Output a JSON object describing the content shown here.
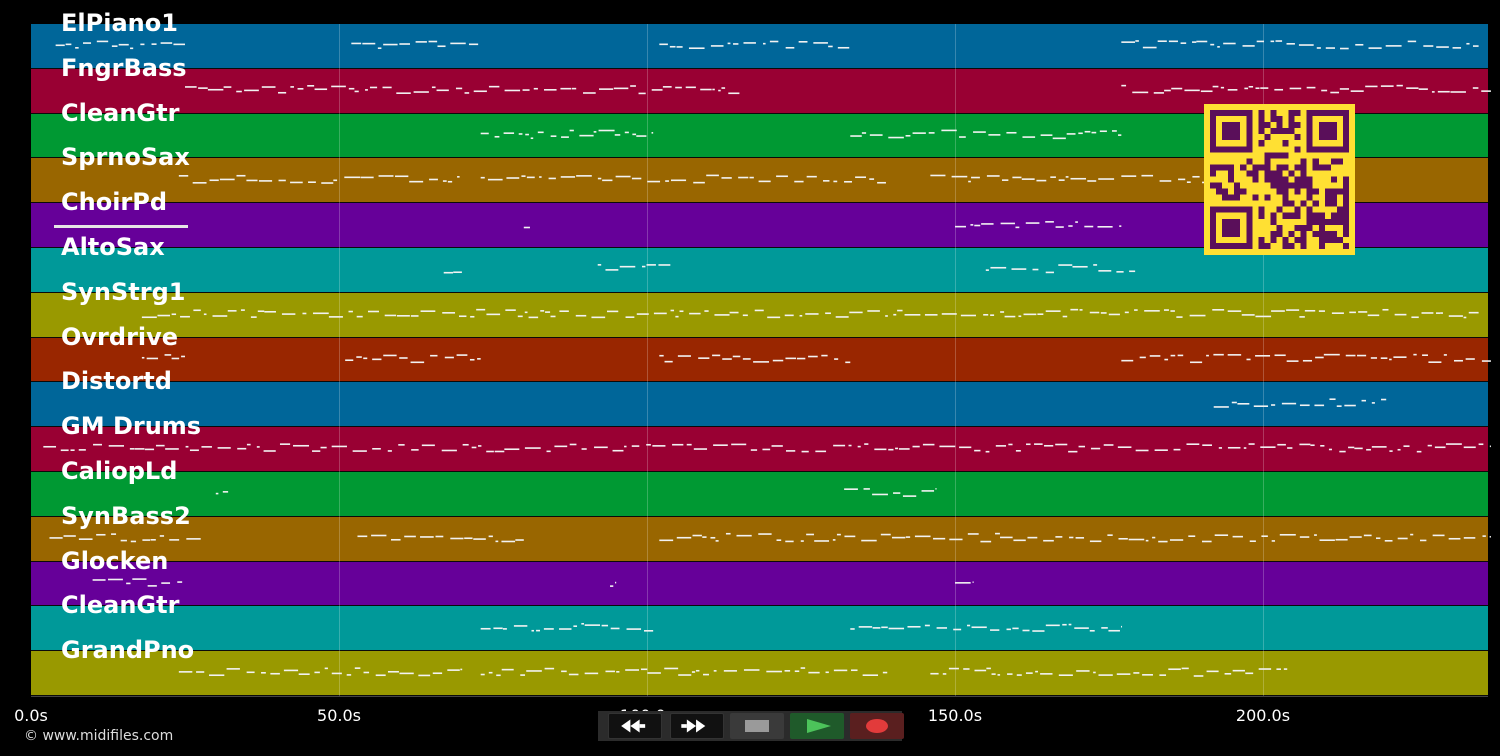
{
  "tracks": [
    {
      "name": "ElPiano1",
      "color": "#006699"
    },
    {
      "name": "FngrBass",
      "color": "#990033"
    },
    {
      "name": "CleanGtr",
      "color": "#009933"
    },
    {
      "name": "SprnoSax",
      "color": "#996600"
    },
    {
      "name": "ChoirPd",
      "color": "#660099"
    },
    {
      "name": "AltoSax",
      "color": "#009999"
    },
    {
      "name": "SynStrg1",
      "color": "#999900"
    },
    {
      "name": "Ovrdrive",
      "color": "#992600"
    },
    {
      "name": "Distortd",
      "color": "#006699"
    },
    {
      "name": "GM Drums",
      "color": "#990033"
    },
    {
      "name": "CaliopLd",
      "color": "#009933"
    },
    {
      "name": "SynBass2",
      "color": "#996600"
    },
    {
      "name": "Glocken",
      "color": "#660099"
    },
    {
      "name": "CleanGtr",
      "color": "#009999"
    },
    {
      "name": "GrandPno",
      "color": "#999900"
    }
  ],
  "timeline": {
    "ticks": [
      "0.0s",
      "50.0s",
      "100.0s",
      "150.0s",
      "200.0s"
    ],
    "duration_seconds": 237
  },
  "selected_track": "ChoirPd",
  "copyright": "© www.midifiles.com",
  "transport": {
    "buttons": [
      {
        "name": "rewind-button",
        "icon": "rewind-icon"
      },
      {
        "name": "fast-forward-button",
        "icon": "fast-forward-icon"
      },
      {
        "name": "stop-button",
        "icon": "stop-icon"
      },
      {
        "name": "play-button",
        "icon": "play-icon"
      },
      {
        "name": "record-button",
        "icon": "record-icon"
      }
    ]
  },
  "qr_code": {
    "color": "#ffe033",
    "dark": "#5a0f5a"
  }
}
